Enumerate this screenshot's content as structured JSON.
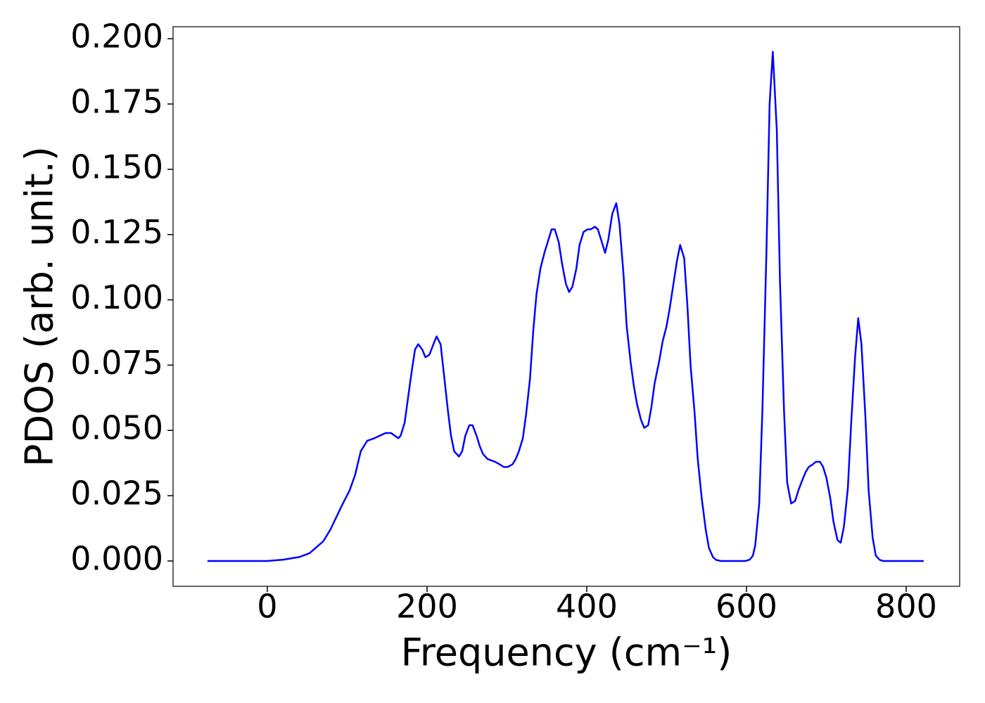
{
  "chart_data": {
    "type": "line",
    "xlabel": "Frequency (cm⁻¹)",
    "ylabel": "PDOS (arb. unit.)",
    "xlim": [
      -118,
      867
    ],
    "ylim": [
      -0.0097,
      0.2046
    ],
    "xticks": [
      0,
      200,
      400,
      600,
      800
    ],
    "yticks": [
      {
        "value": 0,
        "label": "0.000"
      },
      {
        "value": 0.025,
        "label": "0.025"
      },
      {
        "value": 0.05,
        "label": "0.050"
      },
      {
        "value": 0.075,
        "label": "0.075"
      },
      {
        "value": 0.1,
        "label": "0.100"
      },
      {
        "value": 0.125,
        "label": "0.125"
      },
      {
        "value": 0.15,
        "label": "0.150"
      },
      {
        "value": 0.175,
        "label": "0.175"
      },
      {
        "value": 0.2,
        "label": "0.200"
      }
    ],
    "grid": false,
    "x": [
      -75,
      0,
      20,
      40,
      53,
      70,
      79,
      93,
      103,
      110,
      117,
      125,
      134,
      148,
      155,
      164,
      167,
      172,
      176,
      181,
      185,
      189,
      194,
      198,
      203,
      208,
      212,
      217,
      221,
      226,
      230,
      234,
      240,
      244,
      248,
      253,
      257,
      262,
      266,
      270,
      276,
      285,
      291,
      296,
      301,
      307,
      311,
      315,
      320,
      324,
      329,
      333,
      337,
      342,
      347,
      352,
      356,
      360,
      365,
      369,
      374,
      378,
      382,
      387,
      391,
      396,
      401,
      405,
      410,
      414,
      419,
      423,
      427,
      432,
      437,
      441,
      446,
      450,
      455,
      459,
      463,
      468,
      472,
      477,
      481,
      485,
      491,
      495,
      500,
      504,
      508,
      513,
      517,
      522,
      526,
      530,
      535,
      539,
      544,
      549,
      553,
      558,
      562,
      568,
      599,
      604,
      608,
      611,
      616,
      620,
      625,
      629,
      633,
      638,
      642,
      647,
      651,
      656,
      661,
      665,
      670,
      674,
      678,
      683,
      687,
      692,
      696,
      700,
      705,
      709,
      714,
      718,
      722,
      727,
      731,
      736,
      740,
      744,
      749,
      753,
      758,
      762,
      767,
      771,
      822
    ],
    "series": [
      {
        "name": "PDOS",
        "color": "#0000ff",
        "values": [
          0,
          0,
          0.0005,
          0.0015,
          0.003,
          0.0075,
          0.012,
          0.021,
          0.027,
          0.033,
          0.042,
          0.046,
          0.047,
          0.049,
          0.049,
          0.047,
          0.048,
          0.053,
          0.062,
          0.073,
          0.081,
          0.083,
          0.081,
          0.078,
          0.079,
          0.083,
          0.086,
          0.083,
          0.072,
          0.058,
          0.048,
          0.042,
          0.04,
          0.042,
          0.048,
          0.052,
          0.052,
          0.048,
          0.044,
          0.041,
          0.039,
          0.038,
          0.037,
          0.036,
          0.036,
          0.037,
          0.039,
          0.042,
          0.047,
          0.056,
          0.07,
          0.088,
          0.102,
          0.112,
          0.118,
          0.123,
          0.127,
          0.127,
          0.122,
          0.114,
          0.106,
          0.103,
          0.105,
          0.112,
          0.121,
          0.126,
          0.127,
          0.127,
          0.128,
          0.127,
          0.122,
          0.118,
          0.123,
          0.133,
          0.137,
          0.129,
          0.11,
          0.09,
          0.076,
          0.067,
          0.06,
          0.054,
          0.051,
          0.052,
          0.059,
          0.068,
          0.077,
          0.084,
          0.09,
          0.097,
          0.105,
          0.115,
          0.121,
          0.116,
          0.098,
          0.075,
          0.057,
          0.039,
          0.024,
          0.012,
          0.005,
          0.0015,
          0.0004,
          0,
          0,
          0.0005,
          0.002,
          0.006,
          0.022,
          0.058,
          0.118,
          0.175,
          0.195,
          0.165,
          0.107,
          0.058,
          0.03,
          0.022,
          0.023,
          0.027,
          0.031,
          0.034,
          0.036,
          0.037,
          0.038,
          0.038,
          0.036,
          0.032,
          0.024,
          0.015,
          0.008,
          0.007,
          0.013,
          0.028,
          0.052,
          0.078,
          0.093,
          0.083,
          0.055,
          0.027,
          0.009,
          0.002,
          0.0004,
          0,
          0
        ]
      }
    ]
  }
}
